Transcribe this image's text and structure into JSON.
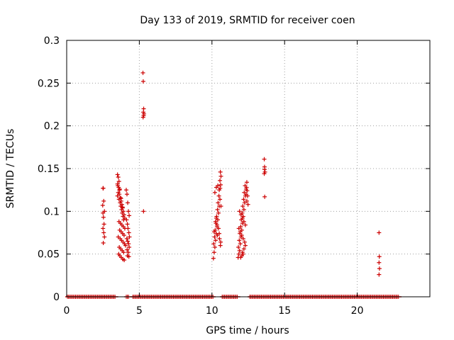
{
  "chart_data": {
    "type": "scatter",
    "title": "Day 133 of 2019, SRMTID for receiver coen",
    "xlabel": "GPS time / hours",
    "ylabel": "SRMTID / TECUs",
    "xlim": [
      0,
      25
    ],
    "ylim": [
      0,
      0.3
    ],
    "xticks": [
      0,
      5,
      10,
      15,
      20
    ],
    "xtick_labels": [
      "0",
      "5",
      "10",
      "15",
      "20"
    ],
    "yticks": [
      0,
      0.05,
      0.1,
      0.15,
      0.2,
      0.25,
      0.3
    ],
    "ytick_labels": [
      "0",
      "0.05",
      "0.1",
      "0.15",
      "0.2",
      "0.25",
      "0.3"
    ],
    "grid": true,
    "marker": "+",
    "color": "#cc0000",
    "zero_baseline_segments": [
      [
        0.05,
        3.4
      ],
      [
        4.1,
        4.3
      ],
      [
        4.55,
        10.1
      ],
      [
        10.7,
        11.8
      ],
      [
        12.6,
        22.9
      ]
    ],
    "series": [
      {
        "name": "SRMTID",
        "x": [
          2.5,
          2.52,
          2.55,
          2.48,
          2.6,
          2.5,
          2.53,
          2.57,
          2.5,
          2.55,
          2.6,
          2.52,
          3.5,
          3.55,
          3.6,
          3.52,
          3.58,
          3.65,
          3.55,
          3.62,
          3.5,
          3.7,
          3.6,
          3.75,
          3.68,
          3.8,
          3.72,
          3.85,
          3.78,
          3.9,
          3.82,
          3.95,
          3.88,
          4.0,
          3.92,
          3.6,
          3.7,
          3.8,
          3.9,
          4.0,
          3.65,
          3.75,
          3.85,
          3.95,
          3.55,
          3.68,
          3.78,
          3.88,
          3.98,
          4.05,
          3.62,
          3.72,
          3.82,
          3.92,
          3.58,
          3.66,
          3.76,
          3.86,
          3.96,
          3.5,
          3.64,
          3.74,
          3.84,
          4.1,
          4.15,
          4.2,
          4.25,
          4.3,
          4.12,
          4.18,
          4.22,
          4.28,
          4.32,
          4.14,
          4.2,
          4.26,
          4.3,
          4.16,
          4.24,
          4.18,
          4.28,
          5.25,
          5.27,
          5.3,
          5.28,
          5.32,
          5.3,
          5.26,
          5.29,
          10.1,
          10.15,
          10.2,
          10.12,
          10.25,
          10.18,
          10.3,
          10.22,
          10.35,
          10.28,
          10.4,
          10.32,
          10.45,
          10.38,
          10.5,
          10.42,
          10.55,
          10.48,
          10.2,
          10.3,
          10.4,
          10.5,
          10.25,
          10.35,
          10.45,
          10.15,
          10.38,
          10.52,
          10.6,
          10.58,
          10.62,
          10.55,
          10.6,
          10.56,
          10.62,
          10.5,
          10.58,
          10.3,
          11.8,
          11.85,
          11.9,
          11.82,
          11.95,
          11.88,
          12.0,
          11.92,
          12.05,
          11.98,
          12.1,
          12.02,
          12.15,
          12.08,
          12.2,
          12.12,
          12.25,
          12.18,
          12.3,
          12.22,
          12.35,
          12.28,
          11.9,
          12.0,
          12.1,
          12.2,
          12.3,
          11.85,
          11.95,
          12.05,
          12.15,
          12.25,
          12.4,
          12.38,
          12.42,
          12.35,
          12.45,
          12.4,
          12.48,
          12.3,
          12.2,
          12.1,
          11.98,
          12.06,
          12.14,
          13.6,
          13.62,
          13.65,
          13.6,
          13.63,
          13.62,
          21.5,
          21.52,
          21.5,
          21.53,
          21.5
        ],
        "y": [
          0.127,
          0.127,
          0.112,
          0.107,
          0.1,
          0.098,
          0.093,
          0.085,
          0.08,
          0.075,
          0.07,
          0.063,
          0.143,
          0.14,
          0.135,
          0.13,
          0.128,
          0.126,
          0.122,
          0.12,
          0.118,
          0.116,
          0.114,
          0.112,
          0.11,
          0.108,
          0.106,
          0.104,
          0.102,
          0.1,
          0.098,
          0.096,
          0.094,
          0.092,
          0.09,
          0.088,
          0.086,
          0.084,
          0.082,
          0.08,
          0.078,
          0.076,
          0.074,
          0.072,
          0.07,
          0.068,
          0.066,
          0.064,
          0.062,
          0.06,
          0.058,
          0.056,
          0.054,
          0.052,
          0.05,
          0.048,
          0.046,
          0.044,
          0.043,
          0.132,
          0.125,
          0.115,
          0.105,
          0.125,
          0.12,
          0.11,
          0.1,
          0.095,
          0.09,
          0.085,
          0.08,
          0.075,
          0.07,
          0.068,
          0.065,
          0.062,
          0.058,
          0.055,
          0.052,
          0.048,
          0.047,
          0.262,
          0.252,
          0.22,
          0.216,
          0.214,
          0.212,
          0.21,
          0.1,
          0.045,
          0.052,
          0.058,
          0.062,
          0.066,
          0.07,
          0.074,
          0.078,
          0.082,
          0.086,
          0.09,
          0.094,
          0.098,
          0.102,
          0.106,
          0.11,
          0.114,
          0.118,
          0.122,
          0.128,
          0.13,
          0.125,
          0.088,
          0.084,
          0.08,
          0.076,
          0.072,
          0.068,
          0.064,
          0.146,
          0.141,
          0.136,
          0.131,
          0.127,
          0.106,
          0.074,
          0.06,
          0.092,
          0.046,
          0.05,
          0.054,
          0.058,
          0.062,
          0.066,
          0.07,
          0.074,
          0.078,
          0.082,
          0.086,
          0.09,
          0.094,
          0.098,
          0.102,
          0.106,
          0.11,
          0.114,
          0.118,
          0.122,
          0.126,
          0.13,
          0.1,
          0.096,
          0.092,
          0.088,
          0.084,
          0.08,
          0.076,
          0.072,
          0.068,
          0.064,
          0.134,
          0.128,
          0.124,
          0.12,
          0.118,
          0.112,
          0.108,
          0.06,
          0.056,
          0.052,
          0.046,
          0.048,
          0.05,
          0.161,
          0.149,
          0.146,
          0.144,
          0.117,
          0.152,
          0.075,
          0.047,
          0.04,
          0.033,
          0.026
        ]
      }
    ]
  }
}
